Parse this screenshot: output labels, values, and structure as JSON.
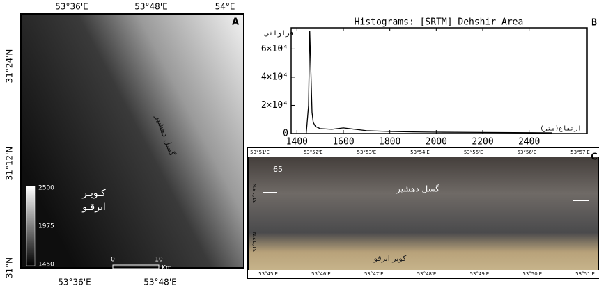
{
  "panel_a": {
    "letter": "A",
    "top_lon": [
      "53°36'E",
      "53°48'E",
      "54°E"
    ],
    "bottom_lon": [
      "53°36'E",
      "53°48'E"
    ],
    "lat": [
      "31°24'N",
      "31°12'N",
      "31°N"
    ],
    "fault": "گسل دهشیر",
    "desert": [
      "کـویـر",
      "ابرقـو"
    ],
    "legend": [
      "2500",
      "1975",
      "1450"
    ],
    "scale": [
      "0",
      "10",
      "Km"
    ]
  },
  "chart_data": {
    "type": "line",
    "letter": "B",
    "title": "Histograms: [SRTM] Dehshir Area",
    "y_label": "فراوانی",
    "x_label": "ارتفاع(متر)",
    "x": [
      1440,
      1450,
      1455,
      1460,
      1465,
      1470,
      1480,
      1500,
      1550,
      1600,
      1650,
      1700,
      1800,
      1900,
      2000,
      2200,
      2400,
      2500
    ],
    "values": [
      0,
      20000,
      73000,
      45000,
      15000,
      8000,
      5000,
      3500,
      3000,
      4000,
      3000,
      2000,
      1500,
      1200,
      1000,
      800,
      600,
      500
    ],
    "color": "#000000",
    "xlim": [
      1375,
      2650
    ],
    "xticks": [
      1400,
      1600,
      1800,
      2000,
      2200,
      2400
    ],
    "ylim": [
      0,
      75000
    ],
    "yticks": [
      0,
      {
        "value": 20000,
        "label": "2×10⁴"
      },
      {
        "value": 40000,
        "label": "4×10⁴"
      },
      {
        "value": 60000,
        "label": "6×10⁴"
      }
    ]
  },
  "panel_c": {
    "letter": "C",
    "top_lon": [
      "53°51'E",
      "53°52'E",
      "53°53'E",
      "53°54'E",
      "53°55'E",
      "53°56'E",
      "53°57'E"
    ],
    "bottom_lon": [
      "53°45'E",
      "53°46'E",
      "53°47'E",
      "53°48'E",
      "53°49'E",
      "53°50'E",
      "53°51'E"
    ],
    "lat": [
      "31°13'N",
      "31°12'N"
    ],
    "fault": "گسل دهشیر",
    "desert": "کویر ابرقو",
    "point": "65"
  }
}
